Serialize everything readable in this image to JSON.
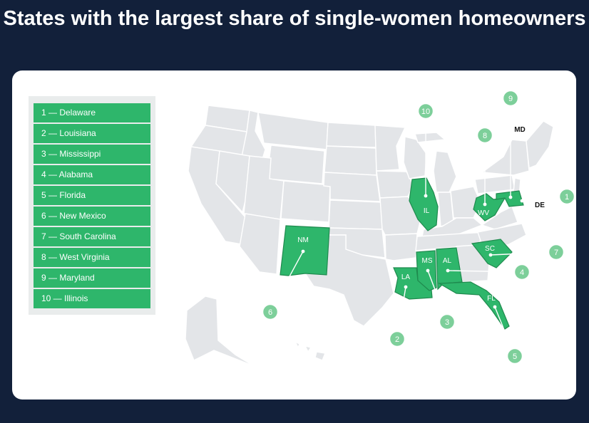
{
  "title": "States with the largest share of single-women homeowners",
  "legend": [
    "1 — Delaware",
    "2 — Louisiana",
    "3 — Mississippi",
    "4 — Alabama",
    "5 — Florida",
    "6 — New Mexico",
    "7 — South Carolina",
    "8 — West Virginia",
    "9 — Maryland",
    "10 — Illinois"
  ],
  "colors": {
    "background": "#12203a",
    "highlight": "#2eb66b",
    "base_state": "#e3e5e8",
    "marker": "#7dcf9a"
  },
  "map": {
    "highlighted": [
      {
        "rank": "1",
        "abbr": "DE",
        "name": "Delaware"
      },
      {
        "rank": "2",
        "abbr": "LA",
        "name": "Louisiana"
      },
      {
        "rank": "3",
        "abbr": "MS",
        "name": "Mississippi"
      },
      {
        "rank": "4",
        "abbr": "AL",
        "name": "Alabama"
      },
      {
        "rank": "5",
        "abbr": "FL",
        "name": "Florida"
      },
      {
        "rank": "6",
        "abbr": "NM",
        "name": "New Mexico"
      },
      {
        "rank": "7",
        "abbr": "SC",
        "name": "South Carolina"
      },
      {
        "rank": "8",
        "abbr": "WV",
        "name": "West Virginia"
      },
      {
        "rank": "9",
        "abbr": "MD",
        "name": "Maryland"
      },
      {
        "rank": "10",
        "abbr": "IL",
        "name": "Illinois"
      }
    ]
  }
}
